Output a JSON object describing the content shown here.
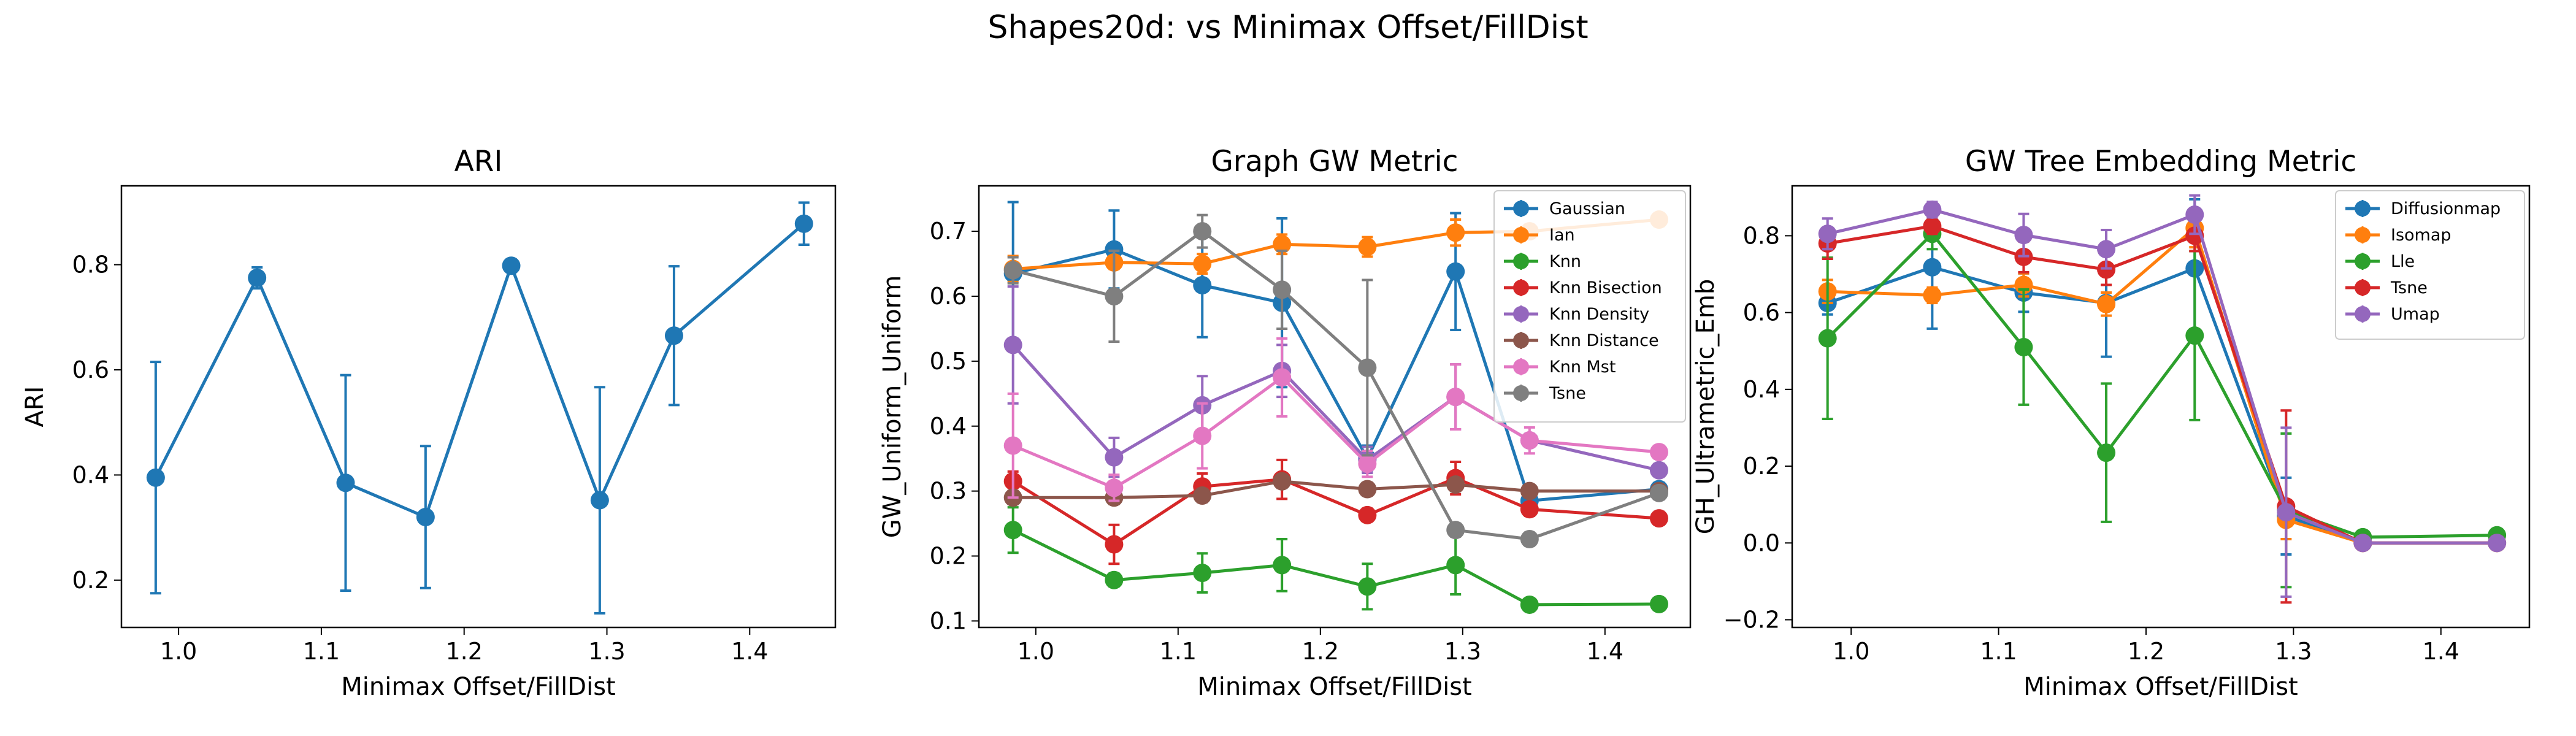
{
  "figure": {
    "suptitle": "Shapes20d: vs Minimax Offset/FillDist"
  },
  "chart_data": [
    {
      "type": "line",
      "title": "ARI",
      "xlabel": "Minimax Offset/FillDist",
      "ylabel": "ARI",
      "xlim": [
        0.96,
        1.46
      ],
      "ylim": [
        0.11,
        0.95
      ],
      "xticks": [
        "1.0",
        "1.1",
        "1.2",
        "1.3",
        "1.4"
      ],
      "yticks": [
        "0.2",
        "0.4",
        "0.6",
        "0.8"
      ],
      "x": [
        0.984,
        1.055,
        1.117,
        1.173,
        1.233,
        1.295,
        1.347,
        1.438
      ],
      "legend": null,
      "series": [
        {
          "name": "",
          "color": "#1f77b4",
          "values": [
            0.395,
            0.775,
            0.385,
            0.32,
            0.798,
            0.352,
            0.665,
            0.878
          ],
          "err": [
            0.22,
            0.02,
            0.205,
            0.135,
            0.012,
            0.215,
            0.132,
            0.04
          ]
        }
      ]
    },
    {
      "type": "line",
      "title": "Graph GW Metric",
      "xlabel": "Minimax Offset/FillDist",
      "ylabel": "GW_Uniform_Uniform",
      "xlim": [
        0.96,
        1.46
      ],
      "ylim": [
        0.09,
        0.77
      ],
      "xticks": [
        "1.0",
        "1.1",
        "1.2",
        "1.3",
        "1.4"
      ],
      "yticks": [
        "0.1",
        "0.2",
        "0.3",
        "0.4",
        "0.5",
        "0.6",
        "0.7"
      ],
      "x": [
        0.984,
        1.055,
        1.117,
        1.173,
        1.233,
        1.295,
        1.347,
        1.438
      ],
      "legend": "top-right",
      "series": [
        {
          "name": "Gaussian",
          "color": "#1f77b4",
          "values": [
            0.635,
            0.672,
            0.617,
            0.59,
            0.35,
            0.638,
            0.285,
            0.303
          ],
          "err": [
            0.11,
            0.06,
            0.08,
            0.13,
            0.02,
            0.09,
            0.01,
            0.01
          ]
        },
        {
          "name": "Ian",
          "color": "#ff7f0e",
          "values": [
            0.642,
            0.652,
            0.65,
            0.68,
            0.676,
            0.698,
            0.7,
            0.718
          ],
          "err": [
            0.02,
            0.01,
            0.015,
            0.015,
            0.015,
            0.02,
            0.01,
            0.01
          ]
        },
        {
          "name": "Knn",
          "color": "#2ca02c",
          "values": [
            0.24,
            0.163,
            0.174,
            0.186,
            0.153,
            0.186,
            0.125,
            0.126
          ],
          "err": [
            0.035,
            0.01,
            0.03,
            0.04,
            0.035,
            0.045,
            0.005,
            0.005
          ]
        },
        {
          "name": "Knn Bisection",
          "color": "#d62728",
          "values": [
            0.315,
            0.218,
            0.307,
            0.318,
            0.263,
            0.32,
            0.272,
            0.258
          ],
          "err": [
            0.015,
            0.03,
            0.02,
            0.03,
            0.01,
            0.025,
            0.01,
            0.01
          ]
        },
        {
          "name": "Knn Density",
          "color": "#9467bd",
          "values": [
            0.525,
            0.352,
            0.432,
            0.485,
            0.348,
            0.445,
            0.378,
            0.332
          ],
          "err": [
            0.09,
            0.03,
            0.045,
            0.04,
            0.02,
            0.05,
            0.01,
            0.01
          ]
        },
        {
          "name": "Knn Distance",
          "color": "#8c564b",
          "values": [
            0.29,
            0.29,
            0.293,
            0.315,
            0.303,
            0.31,
            0.3,
            0.3
          ],
          "err": [
            0.01,
            0.01,
            0.01,
            0.01,
            0.01,
            0.01,
            0.005,
            0.005
          ]
        },
        {
          "name": "Knn Mst",
          "color": "#e377c2",
          "values": [
            0.37,
            0.305,
            0.385,
            0.475,
            0.342,
            0.445,
            0.378,
            0.36
          ],
          "err": [
            0.08,
            0.02,
            0.05,
            0.06,
            0.02,
            0.05,
            0.02,
            0.01
          ]
        },
        {
          "name": "Tsne",
          "color": "#7f7f7f",
          "values": [
            0.64,
            0.6,
            0.7,
            0.61,
            0.49,
            0.24,
            0.226,
            0.297
          ],
          "err": [
            0.02,
            0.07,
            0.025,
            0.06,
            0.135,
            0.01,
            0.01,
            0.01
          ]
        }
      ]
    },
    {
      "type": "line",
      "title": "GW Tree Embedding Metric",
      "xlabel": "Minimax Offset/FillDist",
      "ylabel": "GH_Ultrametric_Emb",
      "xlim": [
        0.96,
        1.46
      ],
      "ylim": [
        -0.22,
        0.93
      ],
      "xticks": [
        "1.0",
        "1.1",
        "1.2",
        "1.3",
        "1.4"
      ],
      "yticks": [
        "−0.2",
        "0.0",
        "0.2",
        "0.4",
        "0.6",
        "0.8"
      ],
      "x": [
        0.984,
        1.055,
        1.117,
        1.173,
        1.233,
        1.295,
        1.347,
        1.438
      ],
      "legend": "top-right",
      "series": [
        {
          "name": "Diffusionmap",
          "color": "#1f77b4",
          "values": [
            0.625,
            0.718,
            0.652,
            0.625,
            0.715,
            0.07,
            0.0,
            0.0
          ],
          "err": [
            0.03,
            0.16,
            0.05,
            0.14,
            0.18,
            0.1,
            0.005,
            0.005
          ]
        },
        {
          "name": "Isomap",
          "color": "#ff7f0e",
          "values": [
            0.655,
            0.645,
            0.672,
            0.622,
            0.82,
            0.06,
            0.0,
            0.0
          ],
          "err": [
            0.03,
            0.02,
            0.03,
            0.03,
            0.05,
            0.05,
            0.005,
            0.005
          ]
        },
        {
          "name": "Lle",
          "color": "#2ca02c",
          "values": [
            0.533,
            0.805,
            0.51,
            0.235,
            0.54,
            0.085,
            0.015,
            0.02
          ],
          "err": [
            0.21,
            0.04,
            0.15,
            0.18,
            0.22,
            0.2,
            0.005,
            0.005
          ]
        },
        {
          "name": "Tsne",
          "color": "#d62728",
          "values": [
            0.78,
            0.825,
            0.745,
            0.712,
            0.8,
            0.095,
            0.0,
            0.0
          ],
          "err": [
            0.04,
            0.02,
            0.04,
            0.04,
            0.04,
            0.25,
            0.005,
            0.005
          ]
        },
        {
          "name": "Umap",
          "color": "#9467bd",
          "values": [
            0.805,
            0.868,
            0.802,
            0.765,
            0.855,
            0.08,
            0.0,
            0.0
          ],
          "err": [
            0.04,
            0.02,
            0.055,
            0.05,
            0.05,
            0.22,
            0.005,
            0.005
          ]
        }
      ]
    }
  ]
}
